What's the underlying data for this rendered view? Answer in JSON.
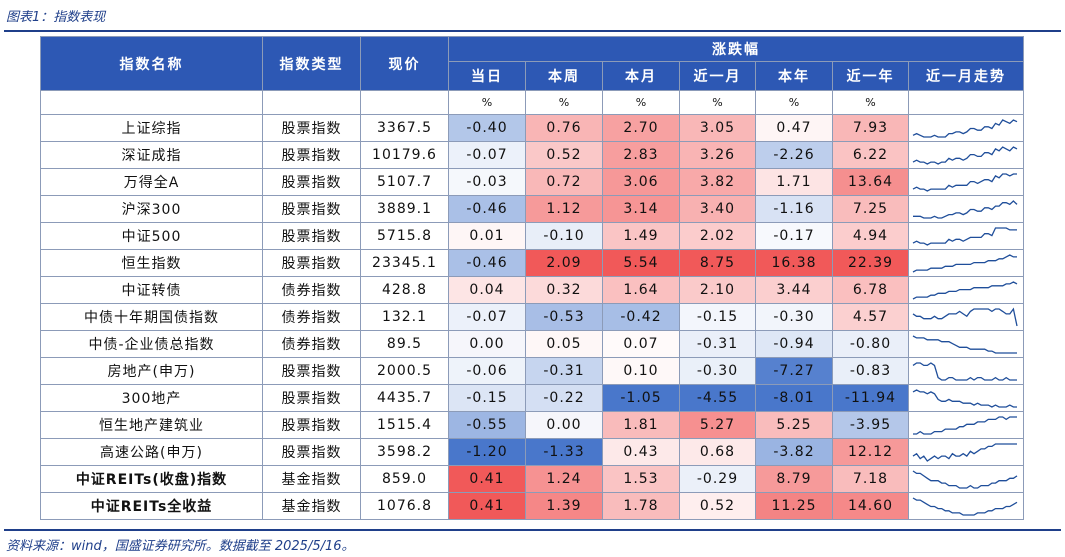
{
  "caption": "图表1：指数表现",
  "source": "资料来源：wind，国盛证券研究所。数据截至 2025/5/16。",
  "header": {
    "name": "指数名称",
    "type": "指数类型",
    "price": "现价",
    "group": "涨跌幅",
    "cols": [
      "当日",
      "本周",
      "本月",
      "近一月",
      "本年",
      "近一年",
      "近一月走势"
    ]
  },
  "unit_row": [
    "%",
    "%",
    "%",
    "%",
    "%",
    "%"
  ],
  "rows": [
    {
      "name": "上证综指",
      "type": "股票指数",
      "price": "3367.5",
      "values": [
        "-0.40",
        "0.76",
        "2.70",
        "3.05",
        "0.47",
        "7.93"
      ],
      "bold": false,
      "spark": [
        3,
        4,
        3,
        2,
        2,
        2,
        3,
        2,
        2,
        2,
        4,
        4,
        5,
        5,
        4,
        5,
        7,
        7,
        6,
        6,
        8,
        8,
        7,
        10,
        9,
        12,
        11,
        10,
        12,
        11
      ]
    },
    {
      "name": "深证成指",
      "type": "股票指数",
      "price": "10179.6",
      "values": [
        "-0.07",
        "0.52",
        "2.83",
        "3.26",
        "-2.26",
        "6.22"
      ],
      "bold": false,
      "spark": [
        3,
        4,
        3,
        3,
        2,
        3,
        3,
        2,
        3,
        3,
        5,
        4,
        5,
        5,
        4,
        5,
        7,
        7,
        6,
        6,
        8,
        8,
        7,
        10,
        9,
        11,
        10,
        9,
        11,
        10
      ]
    },
    {
      "name": "万得全A",
      "type": "股票指数",
      "price": "5107.7",
      "values": [
        "-0.03",
        "0.72",
        "3.06",
        "3.82",
        "1.71",
        "13.64"
      ],
      "bold": false,
      "spark": [
        3,
        4,
        3,
        3,
        2,
        3,
        3,
        3,
        3,
        3,
        5,
        4,
        5,
        5,
        5,
        5,
        7,
        7,
        6,
        7,
        8,
        8,
        7,
        10,
        9,
        11,
        11,
        10,
        11,
        11
      ]
    },
    {
      "name": "沪深300",
      "type": "股票指数",
      "price": "3889.1",
      "values": [
        "-0.46",
        "1.12",
        "3.14",
        "3.40",
        "-1.16",
        "7.25"
      ],
      "bold": false,
      "spark": [
        3,
        3,
        3,
        2,
        2,
        2,
        3,
        2,
        2,
        3,
        4,
        4,
        5,
        5,
        4,
        5,
        7,
        7,
        6,
        6,
        8,
        8,
        7,
        9,
        9,
        11,
        11,
        10,
        12,
        10
      ]
    },
    {
      "name": "中证500",
      "type": "股票指数",
      "price": "5715.8",
      "values": [
        "0.01",
        "-0.10",
        "1.49",
        "2.02",
        "-0.17",
        "4.94"
      ],
      "bold": false,
      "spark": [
        3,
        4,
        3,
        3,
        2,
        3,
        3,
        3,
        3,
        3,
        5,
        4,
        5,
        5,
        4,
        5,
        6,
        6,
        6,
        6,
        8,
        8,
        7,
        11,
        11,
        11,
        11,
        10,
        10,
        10
      ]
    },
    {
      "name": "恒生指数",
      "type": "股票指数",
      "price": "23345.1",
      "values": [
        "-0.46",
        "2.09",
        "5.54",
        "8.75",
        "16.38",
        "22.39"
      ],
      "bold": false,
      "spark": [
        2,
        3,
        3,
        3,
        3,
        4,
        4,
        4,
        4,
        5,
        5,
        5,
        6,
        6,
        6,
        6,
        6,
        7,
        7,
        7,
        7,
        8,
        8,
        8,
        9,
        9,
        10,
        11,
        10,
        10
      ]
    },
    {
      "name": "中证转债",
      "type": "债券指数",
      "price": "428.8",
      "values": [
        "0.04",
        "0.32",
        "1.64",
        "2.10",
        "3.44",
        "6.78"
      ],
      "bold": false,
      "spark": [
        2,
        3,
        3,
        3,
        3,
        4,
        4,
        5,
        5,
        5,
        6,
        6,
        6,
        7,
        7,
        7,
        7,
        8,
        8,
        8,
        8,
        8,
        9,
        9,
        9,
        9,
        10,
        10,
        11,
        10
      ]
    },
    {
      "name": "中债十年期国债指数",
      "type": "债券指数",
      "price": "132.1",
      "values": [
        "-0.07",
        "-0.53",
        "-0.42",
        "-0.15",
        "-0.30",
        "4.57"
      ],
      "bold": false,
      "spark": [
        10,
        9,
        9,
        8,
        8,
        8,
        9,
        8,
        8,
        9,
        10,
        10,
        10,
        11,
        10,
        9,
        11,
        12,
        12,
        12,
        12,
        12,
        11,
        12,
        12,
        11,
        10,
        10,
        12,
        5
      ]
    },
    {
      "name": "中债-企业债总指数",
      "type": "债券指数",
      "price": "89.5",
      "values": [
        "0.00",
        "0.05",
        "0.07",
        "-0.31",
        "-0.94",
        "-0.80"
      ],
      "bold": false,
      "spark": [
        12,
        11,
        11,
        11,
        10,
        10,
        10,
        10,
        9,
        9,
        9,
        8,
        7,
        6,
        6,
        6,
        5,
        5,
        5,
        5,
        5,
        4,
        4,
        3,
        3,
        3,
        3,
        3,
        3,
        3
      ]
    },
    {
      "name": "房地产(申万)",
      "type": "股票指数",
      "price": "2000.5",
      "values": [
        "-0.06",
        "-0.31",
        "0.10",
        "-0.30",
        "-7.27",
        "-0.83"
      ],
      "bold": false,
      "spark": [
        10,
        11,
        11,
        10,
        10,
        11,
        10,
        5,
        4,
        4,
        5,
        5,
        4,
        4,
        4,
        4,
        5,
        4,
        5,
        5,
        4,
        4,
        4,
        5,
        4,
        4,
        5,
        4,
        4,
        4
      ]
    },
    {
      "name": "300地产",
      "type": "股票指数",
      "price": "4435.7",
      "values": [
        "-0.15",
        "-0.22",
        "-1.05",
        "-4.55",
        "-8.01",
        "-11.94"
      ],
      "bold": false,
      "spark": [
        11,
        12,
        11,
        11,
        10,
        11,
        10,
        7,
        6,
        6,
        7,
        6,
        6,
        6,
        5,
        5,
        5,
        4,
        5,
        4,
        4,
        4,
        3,
        4,
        3,
        3,
        3,
        4,
        3,
        3
      ]
    },
    {
      "name": "恒生地产建筑业",
      "type": "股票指数",
      "price": "1515.4",
      "values": [
        "-0.55",
        "0.00",
        "1.81",
        "5.27",
        "5.25",
        "-3.95"
      ],
      "bold": false,
      "spark": [
        3,
        3,
        4,
        3,
        3,
        3,
        4,
        4,
        4,
        5,
        5,
        5,
        5,
        6,
        6,
        7,
        7,
        7,
        8,
        8,
        8,
        9,
        9,
        9,
        10,
        10,
        9,
        10,
        10,
        10
      ]
    },
    {
      "name": "高速公路(申万)",
      "type": "股票指数",
      "price": "3598.2",
      "values": [
        "-1.20",
        "-1.33",
        "0.43",
        "0.68",
        "-3.82",
        "12.12"
      ],
      "bold": false,
      "spark": [
        6,
        7,
        5,
        6,
        4,
        5,
        6,
        5,
        6,
        6,
        5,
        7,
        6,
        6,
        7,
        6,
        8,
        7,
        8,
        9,
        9,
        10,
        10,
        11,
        11,
        11,
        11,
        11,
        11,
        11
      ]
    },
    {
      "name": "中证REITs(收盘)指数",
      "type": "基金指数",
      "price": "859.0",
      "values": [
        "0.41",
        "1.24",
        "1.53",
        "-0.29",
        "8.79",
        "7.18"
      ],
      "bold": true,
      "spark": [
        11,
        10,
        10,
        9,
        8,
        7,
        7,
        7,
        6,
        6,
        5,
        5,
        5,
        4,
        4,
        4,
        5,
        4,
        4,
        5,
        5,
        5,
        6,
        6,
        7,
        7,
        7,
        8,
        8,
        9
      ]
    },
    {
      "name": "中证REITs全收益",
      "type": "基金指数",
      "price": "1076.8",
      "values": [
        "0.41",
        "1.39",
        "1.78",
        "0.52",
        "11.25",
        "14.60"
      ],
      "bold": true,
      "spark": [
        11,
        10,
        10,
        9,
        8,
        7,
        7,
        6,
        6,
        5,
        5,
        4,
        4,
        4,
        3,
        3,
        3,
        3,
        4,
        4,
        4,
        5,
        5,
        6,
        6,
        6,
        7,
        7,
        8,
        9
      ]
    }
  ],
  "colors": {
    "header_bg": "#2d58b4",
    "positive_max": "#f05050",
    "negative_max": "#3f70c8",
    "neutral": "#ffffff",
    "spark_line": "#1f4e9a",
    "caption": "#1f3f8a"
  }
}
